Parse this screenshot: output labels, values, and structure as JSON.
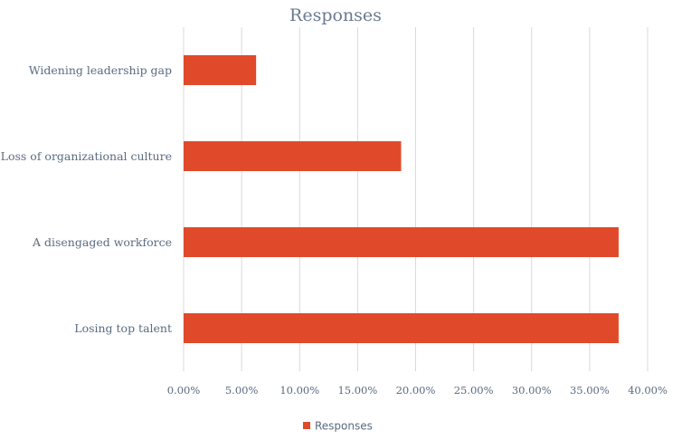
{
  "chart_data": {
    "type": "bar",
    "orientation": "horizontal",
    "title": "Responses",
    "categories": [
      "Widening leadership gap",
      "Loss of organizational culture",
      "A disengaged workforce",
      "Losing top talent"
    ],
    "series": [
      {
        "name": "Responses",
        "values": [
          6.25,
          18.75,
          37.5,
          37.5
        ],
        "color": "#e04a2a"
      }
    ],
    "xlim": [
      0,
      40
    ],
    "x_ticks": [
      "0.00%",
      "5.00%",
      "10.00%",
      "15.00%",
      "20.00%",
      "25.00%",
      "30.00%",
      "35.00%",
      "40.00%"
    ],
    "grid": true,
    "legend_position": "bottom"
  }
}
